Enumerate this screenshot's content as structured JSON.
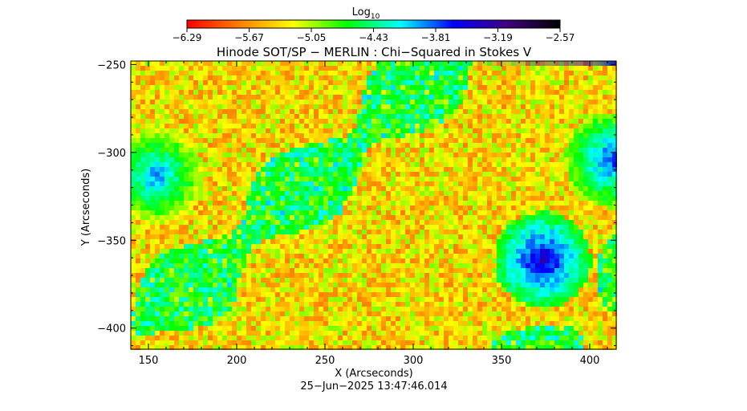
{
  "chart_data": {
    "type": "heatmap",
    "title": "Hinode SOT/SP − MERLIN : Chi−Squared in Stokes V",
    "xlabel": "X (Arcseconds)",
    "ylabel": "Y (Arcseconds)",
    "timestamp": "25−Jun−2025 13:47:46.014",
    "xlim": [
      140,
      415
    ],
    "ylim": [
      -412,
      -248
    ],
    "x_ticks": [
      150,
      200,
      250,
      300,
      350,
      400
    ],
    "x_tick_labels": [
      "150",
      "200",
      "250",
      "300",
      "350",
      "400"
    ],
    "y_ticks": [
      -250,
      -300,
      -350,
      -400
    ],
    "y_tick_labels": [
      "−250",
      "−300",
      "−350",
      "−400"
    ],
    "grid": false,
    "colorbar": {
      "label": "Log",
      "label_sub": "10",
      "range": [
        -6.29,
        -2.57
      ],
      "tick_values": [
        -6.29,
        -5.67,
        -5.05,
        -4.43,
        -3.81,
        -3.19,
        -2.57
      ],
      "tick_labels": [
        "−6.29",
        "−5.67",
        "−5.05",
        "−4.43",
        "−3.81",
        "−3.19",
        "−2.57"
      ],
      "colormap": [
        "#ff0000",
        "#ff8000",
        "#ffff00",
        "#00ff00",
        "#00ffff",
        "#0000ff",
        "#400080",
        "#000000"
      ]
    },
    "regions": [
      {
        "name": "",
        "x": 153,
        "y": -312,
        "level": -3.9
      },
      {
        "name": "",
        "x": 372,
        "y": -360,
        "level": -3.4
      },
      {
        "name": "",
        "x": 412,
        "y": -303,
        "level": -3.7
      }
    ]
  }
}
